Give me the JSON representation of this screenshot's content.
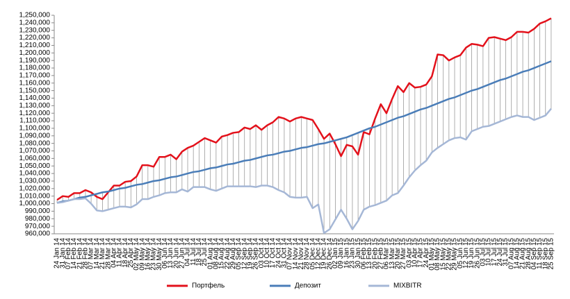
{
  "chart_data": {
    "type": "line",
    "categories": [
      "24 Jan 14",
      "31 Jan 14",
      "07 Feb 14",
      "14 Feb 14",
      "21 Feb 14",
      "28 Feb 14",
      "07 Mar 14",
      "14 Mar 14",
      "21 Mar 14",
      "28 Mar 14",
      "04 Apr 14",
      "11 Apr 14",
      "18 Apr 14",
      "25 Apr 14",
      "02 May 14",
      "09 May 14",
      "16 May 14",
      "23 May 14",
      "30 May 14",
      "06 Jun 14",
      "13 Jun 14",
      "20 Jun 14",
      "27 Jun 14",
      "04 Jul 14",
      "11 Jul 14",
      "18 Jul 14",
      "25 Jul 14",
      "01 Aug 14",
      "08 Aug 14",
      "15 Aug 14",
      "22 Aug 14",
      "29 Aug 14",
      "05 Sep 14",
      "12 Sep 14",
      "19 Sep 14",
      "26 Sep 14",
      "03 Oct 14",
      "10 Oct 14",
      "17 Oct 14",
      "24 Oct 14",
      "31 Oct 14",
      "07 Nov 14",
      "14 Nov 14",
      "21 Nov 14",
      "28 Nov 14",
      "05 Dec 14",
      "12 Dec 14",
      "19 Dec 14",
      "26 Dec 14",
      "02 Jan 15",
      "09 Jan 15",
      "16 Jan 15",
      "23 Jan 15",
      "30 Jan 15",
      "06 Feb 15",
      "13 Feb 15",
      "20 Feb 15",
      "27 Feb 15",
      "06 Mar 15",
      "13 Mar 15",
      "20 Mar 15",
      "27 Mar 15",
      "03 Apr 15",
      "10 Apr 15",
      "17 Apr 15",
      "24 Apr 15",
      "01 May 15",
      "08 May 15",
      "15 May 15",
      "22 May 15",
      "29 May 15",
      "05 Jun 15",
      "12 Jun 15",
      "19 Jun 15",
      "26 Jun 15",
      "03 Jul 15",
      "10 Jul 15",
      "17 Jul 15",
      "24 Jul 15",
      "31 Jul 15",
      "07 Aug 15",
      "14 Aug 15",
      "21 Aug 15",
      "28 Aug 15",
      "04 Sep 15",
      "11 Sep 15",
      "18 Sep 15",
      "25 Sep 15"
    ],
    "series": [
      {
        "name": "Портфель",
        "color": "#e3111b",
        "values": [
          1005000,
          1010000,
          1009000,
          1014000,
          1014000,
          1018000,
          1015000,
          1009000,
          1006000,
          1015000,
          1024000,
          1024000,
          1029000,
          1030000,
          1036000,
          1051000,
          1051000,
          1049000,
          1062000,
          1062000,
          1065000,
          1059000,
          1069000,
          1074000,
          1077000,
          1082000,
          1087000,
          1084000,
          1081000,
          1089000,
          1091000,
          1094000,
          1095000,
          1101000,
          1099000,
          1104000,
          1098000,
          1104000,
          1108000,
          1115000,
          1113000,
          1109000,
          1113000,
          1115000,
          1113000,
          1111000,
          1099000,
          1086000,
          1093000,
          1079000,
          1063000,
          1078000,
          1076000,
          1065000,
          1095000,
          1092000,
          1113000,
          1132000,
          1120000,
          1139000,
          1156000,
          1148000,
          1160000,
          1154000,
          1155000,
          1158000,
          1169000,
          1198000,
          1197000,
          1190000,
          1194000,
          1197000,
          1207000,
          1212000,
          1211000,
          1209000,
          1220000,
          1221000,
          1219000,
          1217000,
          1221000,
          1228000,
          1228000,
          1227000,
          1232000,
          1239000,
          1242000,
          1246000
        ]
      },
      {
        "name": "Депозит",
        "color": "#4a7db8",
        "values": [
          1001000,
          1003000,
          1004000,
          1006000,
          1008000,
          1009000,
          1011000,
          1013000,
          1015000,
          1016000,
          1018000,
          1020000,
          1021000,
          1023000,
          1025000,
          1026000,
          1028000,
          1030000,
          1031000,
          1033000,
          1035000,
          1036000,
          1038000,
          1040000,
          1042000,
          1043000,
          1045000,
          1047000,
          1048000,
          1050000,
          1052000,
          1053000,
          1055000,
          1057000,
          1058000,
          1060000,
          1062000,
          1064000,
          1065000,
          1067000,
          1069000,
          1070000,
          1072000,
          1074000,
          1075000,
          1077000,
          1079000,
          1080000,
          1082000,
          1084000,
          1086000,
          1088000,
          1091000,
          1094000,
          1097000,
          1100000,
          1102000,
          1105000,
          1108000,
          1111000,
          1114000,
          1116000,
          1119000,
          1122000,
          1125000,
          1127000,
          1130000,
          1133000,
          1136000,
          1139000,
          1141000,
          1144000,
          1147000,
          1150000,
          1152000,
          1155000,
          1158000,
          1161000,
          1164000,
          1166000,
          1169000,
          1172000,
          1175000,
          1177000,
          1180000,
          1183000,
          1186000,
          1189000
        ]
      },
      {
        "name": "MIXBITR",
        "color": "#a5b7d6",
        "values": [
          1001000,
          1002000,
          1004000,
          1006000,
          1006000,
          1007000,
          1000000,
          991000,
          990000,
          992000,
          994000,
          996000,
          996000,
          995000,
          999000,
          1006000,
          1006000,
          1009000,
          1011000,
          1014000,
          1015000,
          1015000,
          1019000,
          1016000,
          1022000,
          1022000,
          1022000,
          1019000,
          1017000,
          1020000,
          1023000,
          1023000,
          1023000,
          1023000,
          1023000,
          1022000,
          1024000,
          1024000,
          1022000,
          1018000,
          1015000,
          1009000,
          1008000,
          1008000,
          1009000,
          994000,
          999000,
          961000,
          966000,
          979000,
          992000,
          980000,
          966000,
          977000,
          992000,
          996000,
          998000,
          1001000,
          1004000,
          1011000,
          1014000,
          1024000,
          1035000,
          1044000,
          1051000,
          1057000,
          1068000,
          1074000,
          1079000,
          1084000,
          1087000,
          1088000,
          1085000,
          1096000,
          1099000,
          1102000,
          1103000,
          1106000,
          1109000,
          1112000,
          1115000,
          1117000,
          1115000,
          1115000,
          1111000,
          1114000,
          1117000,
          1126000
        ]
      }
    ],
    "ylim": [
      960000,
      1250000
    ],
    "yticks": [
      {
        "value": 960000,
        "label": "960,000"
      },
      {
        "value": 970000,
        "label": "970,000"
      },
      {
        "value": 980000,
        "label": "980,000"
      },
      {
        "value": 990000,
        "label": "990,000"
      },
      {
        "value": 1000000,
        "label": "1,000,000"
      },
      {
        "value": 1010000,
        "label": "1,010,000"
      },
      {
        "value": 1020000,
        "label": "1,020,000"
      },
      {
        "value": 1030000,
        "label": "1,030,000"
      },
      {
        "value": 1040000,
        "label": "1,040,000"
      },
      {
        "value": 1050000,
        "label": "1,050,000"
      },
      {
        "value": 1060000,
        "label": "1,060,000"
      },
      {
        "value": 1070000,
        "label": "1,070,000"
      },
      {
        "value": 1080000,
        "label": "1,080,000"
      },
      {
        "value": 1090000,
        "label": "1,090,000"
      },
      {
        "value": 1100000,
        "label": "1,100,000"
      },
      {
        "value": 1110000,
        "label": "1,110,000"
      },
      {
        "value": 1120000,
        "label": "1,120,000"
      },
      {
        "value": 1130000,
        "label": "1,130,000"
      },
      {
        "value": 1140000,
        "label": "1,140,000"
      },
      {
        "value": 1150000,
        "label": "1,150,000"
      },
      {
        "value": 1160000,
        "label": "1,160,000"
      },
      {
        "value": 1170000,
        "label": "1,170,000"
      },
      {
        "value": 1180000,
        "label": "1,180,000"
      },
      {
        "value": 1190000,
        "label": "1,190,000"
      },
      {
        "value": 1200000,
        "label": "1,200,000"
      },
      {
        "value": 1210000,
        "label": "1,210,000"
      },
      {
        "value": 1220000,
        "label": "1,220,000"
      },
      {
        "value": 1230000,
        "label": "1,230,000"
      },
      {
        "value": 1240000,
        "label": "1,240,000"
      },
      {
        "value": 1250000,
        "label": "1,250,000"
      }
    ],
    "high_low_lines": true,
    "legend": "bottom"
  }
}
